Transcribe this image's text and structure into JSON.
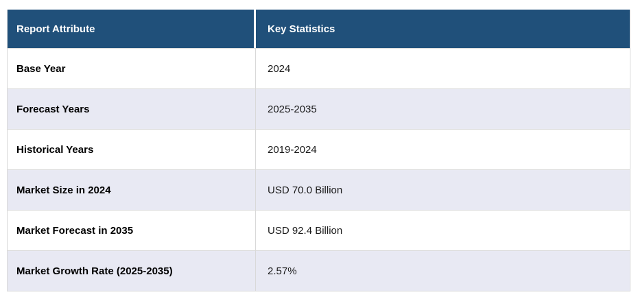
{
  "chart_data": {
    "type": "table",
    "title": "Report Attribute vs Key Statistics",
    "columns": [
      "Report Attribute",
      "Key Statistics"
    ],
    "rows": [
      [
        "Base Year",
        "2024"
      ],
      [
        "Forecast Years",
        "2025-2035"
      ],
      [
        "Historical Years",
        "2019-2024"
      ],
      [
        "Market Size in 2024",
        "USD 70.0 Billion"
      ],
      [
        "Market Forecast in 2035",
        "USD 92.4 Billion"
      ],
      [
        "Market Growth Rate (2025-2035)",
        "2.57%"
      ]
    ]
  },
  "colors": {
    "header_bg": "#20507A",
    "header_text": "#FFFFFF",
    "row_bg": "#FFFFFF",
    "row_alt_bg": "#E8E9F3",
    "border": "#D9D9D9",
    "label_text": "#000000",
    "value_text": "#1B1B1B"
  }
}
